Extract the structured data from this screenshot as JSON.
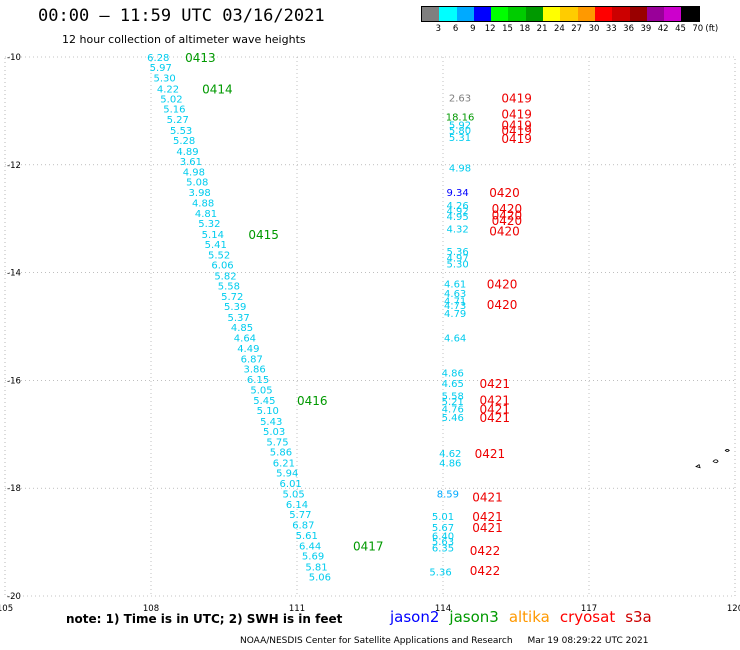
{
  "header": {
    "title": "00:00 – 11:59 UTC 03/16/2021",
    "subtitle": "12 hour collection of altimeter wave heights"
  },
  "legend": {
    "unit": "(ft)",
    "bins": [
      {
        "label": "3",
        "color": "#7f7f7f"
      },
      {
        "label": "6",
        "color": "#00ffff"
      },
      {
        "label": "9",
        "color": "#00aaff"
      },
      {
        "label": "12",
        "color": "#0000ff"
      },
      {
        "label": "15",
        "color": "#00ff00"
      },
      {
        "label": "18",
        "color": "#00cc00"
      },
      {
        "label": "21",
        "color": "#009900"
      },
      {
        "label": "24",
        "color": "#ffff00"
      },
      {
        "label": "27",
        "color": "#ffcc00"
      },
      {
        "label": "30",
        "color": "#ff9900"
      },
      {
        "label": "33",
        "color": "#ff0000"
      },
      {
        "label": "36",
        "color": "#cc0000"
      },
      {
        "label": "39",
        "color": "#990000"
      },
      {
        "label": "42",
        "color": "#990099"
      },
      {
        "label": "45",
        "color": "#cc00cc"
      },
      {
        "label": "70",
        "color": "#000000"
      }
    ]
  },
  "axes": {
    "lon_labels": [
      "105",
      "108",
      "111",
      "114",
      "117",
      "120"
    ],
    "lat_labels": [
      "-10",
      "-12",
      "-14",
      "-16",
      "-18",
      "-20"
    ]
  },
  "track_a": [
    {
      "v": "6.28",
      "lon": 108.15,
      "lat": -10.0
    },
    {
      "v": "5.97",
      "lon": 108.2,
      "lat": -10.19
    },
    {
      "v": "5.30",
      "lon": 108.28,
      "lat": -10.38
    },
    {
      "v": "4.22",
      "lon": 108.35,
      "lat": -10.58
    },
    {
      "v": "5.02",
      "lon": 108.42,
      "lat": -10.77
    },
    {
      "v": "5.16",
      "lon": 108.48,
      "lat": -10.96
    },
    {
      "v": "5.27",
      "lon": 108.55,
      "lat": -11.15
    },
    {
      "v": "5.53",
      "lon": 108.62,
      "lat": -11.35
    },
    {
      "v": "5.28",
      "lon": 108.68,
      "lat": -11.54
    },
    {
      "v": "4.89",
      "lon": 108.75,
      "lat": -11.74
    },
    {
      "v": "3.61",
      "lon": 108.82,
      "lat": -11.93
    },
    {
      "v": "4.98",
      "lon": 108.88,
      "lat": -12.12
    },
    {
      "v": "5.08",
      "lon": 108.95,
      "lat": -12.31
    },
    {
      "v": "3.98",
      "lon": 109.0,
      "lat": -12.5
    },
    {
      "v": "4.88",
      "lon": 109.07,
      "lat": -12.7
    },
    {
      "v": "4.81",
      "lon": 109.13,
      "lat": -12.89
    },
    {
      "v": "5.32",
      "lon": 109.2,
      "lat": -13.08
    },
    {
      "v": "5.14",
      "lon": 109.27,
      "lat": -13.28
    },
    {
      "v": "5.41",
      "lon": 109.33,
      "lat": -13.47
    },
    {
      "v": "5.52",
      "lon": 109.4,
      "lat": -13.66
    },
    {
      "v": "6.06",
      "lon": 109.47,
      "lat": -13.85
    },
    {
      "v": "5.82",
      "lon": 109.53,
      "lat": -14.05
    },
    {
      "v": "5.58",
      "lon": 109.6,
      "lat": -14.24
    },
    {
      "v": "5.72",
      "lon": 109.67,
      "lat": -14.43
    },
    {
      "v": "5.39",
      "lon": 109.73,
      "lat": -14.62
    },
    {
      "v": "5.37",
      "lon": 109.8,
      "lat": -14.82
    },
    {
      "v": "4.85",
      "lon": 109.87,
      "lat": -15.01
    },
    {
      "v": "4.64",
      "lon": 109.93,
      "lat": -15.2
    },
    {
      "v": "4.49",
      "lon": 110.0,
      "lat": -15.4
    },
    {
      "v": "6.87",
      "lon": 110.07,
      "lat": -15.59
    },
    {
      "v": "3.86",
      "lon": 110.13,
      "lat": -15.78
    },
    {
      "v": "6.15",
      "lon": 110.2,
      "lat": -15.97
    },
    {
      "v": "5.05",
      "lon": 110.27,
      "lat": -16.17
    },
    {
      "v": "5.45",
      "lon": 110.33,
      "lat": -16.36
    },
    {
      "v": "5.10",
      "lon": 110.4,
      "lat": -16.55
    },
    {
      "v": "5.43",
      "lon": 110.47,
      "lat": -16.75
    },
    {
      "v": "5.03",
      "lon": 110.53,
      "lat": -16.94
    },
    {
      "v": "5.75",
      "lon": 110.6,
      "lat": -17.13
    },
    {
      "v": "5.86",
      "lon": 110.67,
      "lat": -17.32
    },
    {
      "v": "6.21",
      "lon": 110.73,
      "lat": -17.52
    },
    {
      "v": "5.94",
      "lon": 110.8,
      "lat": -17.71
    },
    {
      "v": "6.01",
      "lon": 110.87,
      "lat": -17.9
    },
    {
      "v": "5.05",
      "lon": 110.93,
      "lat": -18.1
    },
    {
      "v": "6.14",
      "lon": 111.0,
      "lat": -18.29
    },
    {
      "v": "5.77",
      "lon": 111.07,
      "lat": -18.48
    },
    {
      "v": "6.87",
      "lon": 111.13,
      "lat": -18.67
    },
    {
      "v": "5.61",
      "lon": 111.2,
      "lat": -18.87
    },
    {
      "v": "6.44",
      "lon": 111.27,
      "lat": -19.06
    },
    {
      "v": "5.69",
      "lon": 111.33,
      "lat": -19.25
    },
    {
      "v": "5.81",
      "lon": 111.4,
      "lat": -19.45
    },
    {
      "v": "5.06",
      "lon": 111.47,
      "lat": -19.64
    }
  ],
  "track_a_markers": [
    {
      "label": "0413",
      "lon": 108.7,
      "lat": -10.0
    },
    {
      "label": "0414",
      "lon": 109.05,
      "lat": -10.58
    },
    {
      "label": "0415",
      "lon": 110.0,
      "lat": -13.28
    },
    {
      "label": "0416",
      "lon": 111.0,
      "lat": -16.36
    },
    {
      "label": "0417",
      "lon": 112.15,
      "lat": -19.06
    }
  ],
  "track_b": [
    {
      "v": "2.63",
      "lon": 114.35,
      "lat": -10.75,
      "color": "#7f7f7f"
    },
    {
      "v": "18.16",
      "lon": 114.35,
      "lat": -11.1,
      "color": "#009900"
    },
    {
      "v": "5.92",
      "lon": 114.35,
      "lat": -11.25,
      "color": "#00ffff"
    },
    {
      "v": "5.80",
      "lon": 114.35,
      "lat": -11.35,
      "color": "#00ffff"
    },
    {
      "v": "5.31",
      "lon": 114.35,
      "lat": -11.48,
      "color": "#00ffff"
    },
    {
      "v": "4.98",
      "lon": 114.35,
      "lat": -12.05,
      "color": "#00ffff"
    },
    {
      "v": "9.34",
      "lon": 114.3,
      "lat": -12.5,
      "color": "#0000ff"
    },
    {
      "v": "4.26",
      "lon": 114.3,
      "lat": -12.75,
      "color": "#00ffff"
    },
    {
      "v": "4.92",
      "lon": 114.3,
      "lat": -12.85,
      "color": "#00ffff"
    },
    {
      "v": "4.95",
      "lon": 114.3,
      "lat": -12.95,
      "color": "#00ffff"
    },
    {
      "v": "4.32",
      "lon": 114.3,
      "lat": -13.18,
      "color": "#00ffff"
    },
    {
      "v": "5.36",
      "lon": 114.3,
      "lat": -13.6,
      "color": "#00ffff"
    },
    {
      "v": "4.97",
      "lon": 114.3,
      "lat": -13.72,
      "color": "#00ffff"
    },
    {
      "v": "5.30",
      "lon": 114.3,
      "lat": -13.83,
      "color": "#00ffff"
    },
    {
      "v": "4.61",
      "lon": 114.25,
      "lat": -14.2,
      "color": "#00ffff"
    },
    {
      "v": "4.63",
      "lon": 114.25,
      "lat": -14.38,
      "color": "#00ffff"
    },
    {
      "v": "4.71",
      "lon": 114.25,
      "lat": -14.52,
      "color": "#00ffff"
    },
    {
      "v": "4.73",
      "lon": 114.25,
      "lat": -14.6,
      "color": "#00ffff"
    },
    {
      "v": "4.79",
      "lon": 114.25,
      "lat": -14.75,
      "color": "#00ffff"
    },
    {
      "v": "4.64",
      "lon": 114.25,
      "lat": -15.2,
      "color": "#00ffff"
    },
    {
      "v": "4.86",
      "lon": 114.2,
      "lat": -15.85,
      "color": "#00ffff"
    },
    {
      "v": "4.65",
      "lon": 114.2,
      "lat": -16.05,
      "color": "#00ffff"
    },
    {
      "v": "5.58",
      "lon": 114.2,
      "lat": -16.28,
      "color": "#00ffff"
    },
    {
      "v": "5.21",
      "lon": 114.2,
      "lat": -16.38,
      "color": "#00ffff"
    },
    {
      "v": "4.76",
      "lon": 114.2,
      "lat": -16.52,
      "color": "#00ffff"
    },
    {
      "v": "5.46",
      "lon": 114.2,
      "lat": -16.68,
      "color": "#00ffff"
    },
    {
      "v": "4.62",
      "lon": 114.15,
      "lat": -17.35,
      "color": "#00ffff"
    },
    {
      "v": "4.86",
      "lon": 114.15,
      "lat": -17.52,
      "color": "#00ffff"
    },
    {
      "v": "8.59",
      "lon": 114.1,
      "lat": -18.1,
      "color": "#00aaff"
    },
    {
      "v": "5.01",
      "lon": 114.0,
      "lat": -18.52,
      "color": "#00ffff"
    },
    {
      "v": "5.67",
      "lon": 114.0,
      "lat": -18.72,
      "color": "#00ffff"
    },
    {
      "v": "6.40",
      "lon": 114.0,
      "lat": -18.88,
      "color": "#00ffff"
    },
    {
      "v": "5.63",
      "lon": 114.0,
      "lat": -18.98,
      "color": "#00ffff"
    },
    {
      "v": "6.35",
      "lon": 114.0,
      "lat": -19.1,
      "color": "#00ffff"
    },
    {
      "v": "5.36",
      "lon": 113.95,
      "lat": -19.55,
      "color": "#00ffff"
    }
  ],
  "track_b_markers": [
    {
      "label": "0419",
      "lon": 115.2,
      "lat": -10.75
    },
    {
      "label": "0419",
      "lon": 115.2,
      "lat": -11.05
    },
    {
      "label": "0419",
      "lon": 115.2,
      "lat": -11.25
    },
    {
      "label": "0419",
      "lon": 115.2,
      "lat": -11.35
    },
    {
      "label": "0419",
      "lon": 115.2,
      "lat": -11.5
    },
    {
      "label": "0420",
      "lon": 114.95,
      "lat": -12.5
    },
    {
      "label": "0420",
      "lon": 115.0,
      "lat": -12.8
    },
    {
      "label": "0420",
      "lon": 115.0,
      "lat": -12.92
    },
    {
      "label": "0420",
      "lon": 115.0,
      "lat": -13.02
    },
    {
      "label": "0420",
      "lon": 114.95,
      "lat": -13.22
    },
    {
      "label": "0420",
      "lon": 114.9,
      "lat": -14.2
    },
    {
      "label": "0420",
      "lon": 114.9,
      "lat": -14.58
    },
    {
      "label": "0421",
      "lon": 114.75,
      "lat": -16.05
    },
    {
      "label": "0421",
      "lon": 114.75,
      "lat": -16.35
    },
    {
      "label": "0421",
      "lon": 114.75,
      "lat": -16.52
    },
    {
      "label": "0421",
      "lon": 114.75,
      "lat": -16.68
    },
    {
      "label": "0421",
      "lon": 114.65,
      "lat": -17.35
    },
    {
      "label": "0421",
      "lon": 114.6,
      "lat": -18.15
    },
    {
      "label": "0421",
      "lon": 114.6,
      "lat": -18.52
    },
    {
      "label": "0421",
      "lon": 114.6,
      "lat": -18.72
    },
    {
      "label": "0422",
      "lon": 114.55,
      "lat": -19.15
    },
    {
      "label": "0422",
      "lon": 114.55,
      "lat": -19.52
    }
  ],
  "note": "note:  1) Time is in UTC;  2) SWH is in feet",
  "satellites": [
    {
      "name": "jason2",
      "color": "#0000ff"
    },
    {
      "name": "jason3",
      "color": "#009900"
    },
    {
      "name": "altika",
      "color": "#ff9900"
    },
    {
      "name": "cryosat",
      "color": "#ff0000"
    },
    {
      "name": "s3a",
      "color": "#cc0000"
    }
  ],
  "credit": {
    "org": "NOAA/NESDIS Center for Satellite Applications and Research",
    "timestamp": "Mar 19 08:29:22 UTC 2021"
  }
}
